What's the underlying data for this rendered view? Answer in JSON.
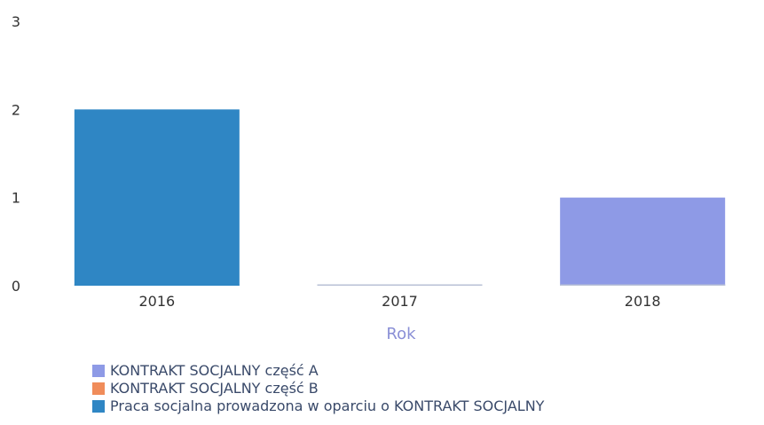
{
  "chart_data": {
    "type": "bar",
    "categories": [
      "2016",
      "2017",
      "2018"
    ],
    "series": [
      {
        "name": "KONTRAKT SOCJALNY część A",
        "values": [
          0,
          0,
          1
        ],
        "color": "#8e9ae6"
      },
      {
        "name": "KONTRAKT SOCJALNY część B",
        "values": [
          0,
          0,
          0
        ],
        "color": "#f08c5a"
      },
      {
        "name": "Praca socjalna prowadzona w oparciu o KONTRAKT SOCJALNY",
        "values": [
          2,
          0,
          0
        ],
        "color": "#2f86c4"
      }
    ],
    "yticks": [
      "0",
      "1",
      "2",
      "3"
    ],
    "ylim": [
      0,
      3
    ],
    "xlabel": "Rok",
    "ylabel": "",
    "title": "",
    "legend_position": "bottom-left",
    "grid": false
  }
}
